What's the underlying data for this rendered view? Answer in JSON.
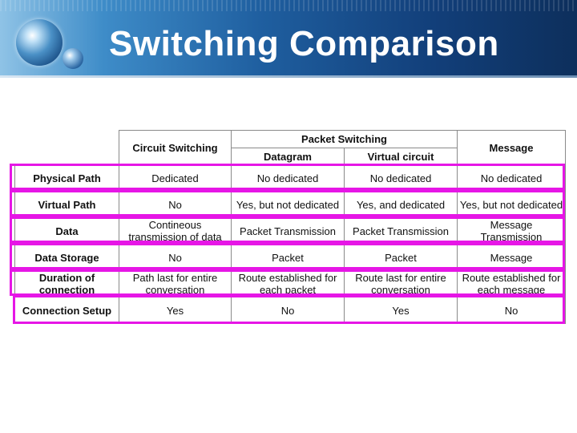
{
  "slide": {
    "title": "Switching Comparison"
  },
  "table": {
    "header": {
      "circuit": "Circuit Switching",
      "packet": "Packet Switching",
      "message": "Message",
      "datagram": "Datagram",
      "virtual_circuit": "Virtual circuit"
    },
    "rows": [
      {
        "label": "Physical Path",
        "circuit": "Dedicated",
        "datagram": "No dedicated",
        "virtual": "No dedicated",
        "message": "No dedicated"
      },
      {
        "label": "Virtual Path",
        "circuit": "No",
        "datagram": "Yes, but not dedicated",
        "virtual": "Yes, and dedicated",
        "message": "Yes, but not dedicated"
      },
      {
        "label": "Data",
        "circuit": "Contineous transmission of data",
        "datagram": "Packet Transmission",
        "virtual": "Packet Transmission",
        "message": "Message Transmission"
      },
      {
        "label": "Data Storage",
        "circuit": "No",
        "datagram": "Packet",
        "virtual": "Packet",
        "message": "Message"
      },
      {
        "label": "Duration of connection",
        "circuit": "Path last for entire conversation",
        "datagram": "Route established for each packet",
        "virtual": "Route last for entire conversation",
        "message": "Route established for each message"
      },
      {
        "label": "Connection Setup",
        "circuit": "Yes",
        "datagram": "No",
        "virtual": "Yes",
        "message": "No"
      }
    ]
  },
  "colors": {
    "highlight": "#e616e6",
    "banner_dark": "#0d2f5c",
    "banner_light": "#8fc3e6"
  },
  "icons": [
    "globe-logo"
  ]
}
